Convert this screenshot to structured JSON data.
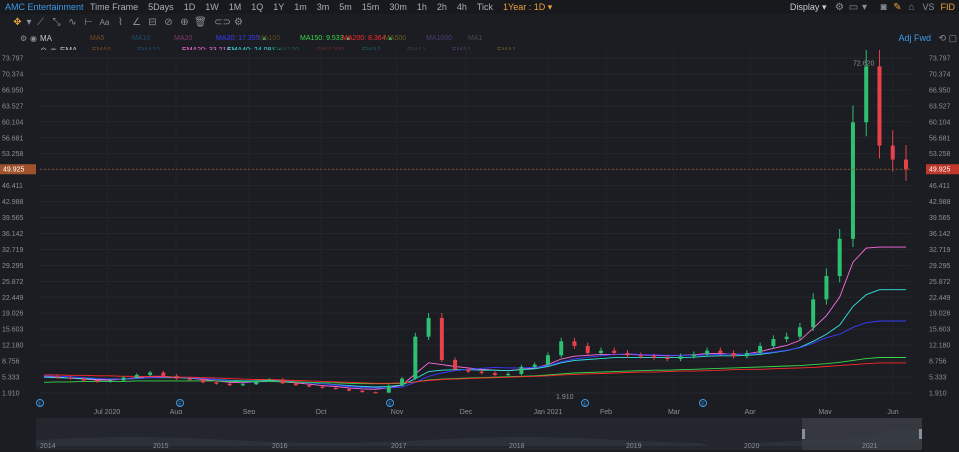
{
  "toolbar": {
    "title": "AMC Entertainment ...",
    "time_frame_label": "Time Frame",
    "time_frames": [
      "5Days",
      "1D",
      "1W",
      "1M",
      "1Q",
      "1Y",
      "1m",
      "3m",
      "5m",
      "15m",
      "30m",
      "1h",
      "2h",
      "4h",
      "Tick"
    ],
    "active_range": "1Year : 1D",
    "display_label": "Display",
    "vs_label": "VS",
    "fid_label": "FID",
    "icons": [
      "settings-icon",
      "layout-icon",
      "camera-icon",
      "pencil-icon",
      "lock-icon"
    ]
  },
  "tools": {
    "icons": [
      "crosshair-icon",
      "trend-line-icon",
      "ray-line-icon",
      "wave-icon",
      "measure-icon",
      "text-icon",
      "brush-icon",
      "angle-icon",
      "fib-icon",
      "cycle-icon",
      "gann-icon",
      "trash-icon",
      "link-icon",
      "settings-icon"
    ],
    "text_tool_label": "Aa"
  },
  "indicators": {
    "ma": {
      "label": "MA",
      "items": [
        {
          "text": "MA5",
          "color": "#7a4a23"
        },
        {
          "text": "MA10",
          "color": "#1f4d6b"
        },
        {
          "text": "MA20",
          "color": "#7d3b6b"
        },
        {
          "text": "MA30: 17.355",
          "color": "#3a3cff"
        },
        {
          "text": "MA100",
          "color": "#5a4a1a"
        },
        {
          "text": "MA150: 9.533",
          "color": "#39d84b"
        },
        {
          "text": "MA200: 8.364",
          "color": "#ff2a2a"
        },
        {
          "text": "MA500",
          "color": "#6a5a20"
        },
        {
          "text": "MA1000",
          "color": "#4b3b7a"
        },
        {
          "text": "MA1",
          "color": "#4a4a4a"
        }
      ]
    },
    "ema": {
      "label": "EMA",
      "items": [
        {
          "text": "EMA5",
          "color": "#7a4a23"
        },
        {
          "text": "EMA10",
          "color": "#1f4d6b"
        },
        {
          "text": "EMA20: 33.214",
          "color": "#ff6ee0"
        },
        {
          "text": "EMA40: 24.081",
          "color": "#35e3e3"
        },
        {
          "text": "EMA120",
          "color": "#1f5a4a"
        },
        {
          "text": "EMA250",
          "color": "#6a2a2a"
        },
        {
          "text": "EMA1",
          "color": "#1f5a6a"
        },
        {
          "text": "EMA1",
          "color": "#3a3a4a"
        },
        {
          "text": "EMA1",
          "color": "#4b3b6a"
        },
        {
          "text": "EMA1",
          "color": "#6a5a20"
        }
      ]
    },
    "adj_label": "Adj Fwd"
  },
  "chart_data": {
    "type": "candlestick",
    "y_ticks": [
      "73.797",
      "70.374",
      "66.950",
      "63.527",
      "60.104",
      "56.681",
      "53.258",
      "49.835",
      "46.411",
      "42.988",
      "39.565",
      "36.142",
      "32.719",
      "29.295",
      "25.872",
      "22.449",
      "19.026",
      "15.603",
      "12.180",
      "8.756",
      "5.333",
      "1.910"
    ],
    "ylim": [
      1.91,
      73.797
    ],
    "x_labels": [
      "Jul 2020",
      "Aug",
      "Sep",
      "Oct",
      "Nov",
      "Dec",
      "Jan 2021",
      "Feb",
      "Mar",
      "Apr",
      "May",
      "Jun"
    ],
    "current_price": "49.925",
    "high_label": "72.620",
    "low_label": "1.910",
    "colors": {
      "up": "#2fbf71",
      "down": "#e8414a",
      "price_line": "#a0522d"
    },
    "prices": [
      5.5,
      5.2,
      5.0,
      4.6,
      4.3,
      4.6,
      5.2,
      5.8,
      6.3,
      5.6,
      5.0,
      4.8,
      4.2,
      3.9,
      3.6,
      3.8,
      4.5,
      4.8,
      4.0,
      3.6,
      3.3,
      3.0,
      2.8,
      2.4,
      2.1,
      2.0,
      3.5,
      5.0,
      14.0,
      18.0,
      9.0,
      7.0,
      6.5,
      6.2,
      5.8,
      6.0,
      7.5,
      8.0,
      10.0,
      13.0,
      12.0,
      10.5,
      11.0,
      10.5,
      10.0,
      9.8,
      9.5,
      9.2,
      9.8,
      10.2,
      11.0,
      10.5,
      9.8,
      10.5,
      12.0,
      13.5,
      14.0,
      16.0,
      22.0,
      27.0,
      35.0,
      60.0,
      72.0,
      55.0,
      52.0,
      49.925
    ],
    "ma_lines": [
      {
        "name": "EMA20",
        "color": "#ff6ee0",
        "values": [
          5.4,
          5.3,
          5.1,
          4.9,
          4.7,
          4.7,
          4.9,
          5.2,
          5.5,
          5.5,
          5.3,
          5.1,
          4.8,
          4.5,
          4.2,
          4.1,
          4.3,
          4.5,
          4.3,
          4.1,
          3.8,
          3.5,
          3.3,
          3.0,
          2.8,
          2.7,
          3.0,
          3.6,
          6.0,
          8.4,
          8.0,
          7.6,
          7.3,
          7.0,
          6.8,
          6.7,
          7.0,
          7.3,
          8.0,
          9.2,
          9.8,
          10.0,
          10.2,
          10.2,
          10.2,
          10.1,
          10.0,
          9.9,
          10.0,
          10.1,
          10.4,
          10.4,
          10.2,
          10.3,
          10.8,
          11.5,
          12.1,
          13.2,
          15.8,
          18.5,
          22.5,
          30.0,
          33.0,
          33.214,
          33.214,
          33.214
        ]
      },
      {
        "name": "EMA40",
        "color": "#35e3e3",
        "values": [
          5.3,
          5.2,
          5.1,
          5.0,
          4.9,
          4.9,
          4.9,
          5.0,
          5.2,
          5.2,
          5.2,
          5.1,
          5.0,
          4.8,
          4.6,
          4.5,
          4.5,
          4.6,
          4.5,
          4.3,
          4.1,
          3.9,
          3.7,
          3.5,
          3.3,
          3.2,
          3.3,
          3.6,
          5.0,
          6.5,
          6.8,
          6.9,
          6.9,
          6.8,
          6.8,
          6.7,
          6.9,
          7.1,
          7.6,
          8.4,
          8.9,
          9.1,
          9.3,
          9.5,
          9.5,
          9.5,
          9.5,
          9.5,
          9.5,
          9.6,
          9.8,
          9.9,
          9.9,
          10.0,
          10.2,
          10.6,
          11.0,
          11.7,
          13.0,
          14.5,
          16.5,
          20.5,
          23.0,
          24.081,
          24.081,
          24.081
        ]
      },
      {
        "name": "MA30",
        "color": "#3a3cff",
        "values": [
          5.6,
          5.5,
          5.4,
          5.2,
          5.0,
          4.9,
          4.9,
          5.0,
          5.2,
          5.3,
          5.3,
          5.2,
          5.0,
          4.8,
          4.5,
          4.3,
          4.3,
          4.4,
          4.4,
          4.3,
          4.1,
          3.9,
          3.6,
          3.3,
          3.1,
          3.0,
          3.0,
          3.2,
          4.2,
          5.5,
          6.2,
          6.7,
          7.0,
          7.2,
          7.4,
          7.3,
          7.3,
          7.4,
          7.8,
          8.6,
          9.2,
          9.6,
          9.9,
          10.2,
          10.3,
          10.2,
          10.1,
          10.0,
          10.0,
          10.0,
          10.1,
          10.2,
          10.3,
          10.3,
          10.4,
          10.7,
          11.1,
          11.6,
          12.6,
          13.8,
          14.5,
          16.0,
          17.0,
          17.355,
          17.355,
          17.355
        ]
      },
      {
        "name": "MA150",
        "color": "#39d84b",
        "values": [
          4.2,
          4.3,
          4.3,
          4.4,
          4.4,
          4.4,
          4.4,
          4.5,
          4.5,
          4.5,
          4.5,
          4.5,
          4.5,
          4.5,
          4.4,
          4.4,
          4.4,
          4.4,
          4.3,
          4.3,
          4.2,
          4.1,
          4.1,
          4.0,
          3.9,
          3.9,
          3.9,
          4.0,
          4.3,
          4.7,
          4.9,
          5.0,
          5.1,
          5.2,
          5.3,
          5.4,
          5.5,
          5.6,
          5.8,
          6.0,
          6.2,
          6.3,
          6.4,
          6.5,
          6.6,
          6.7,
          6.8,
          6.8,
          6.9,
          7.0,
          7.1,
          7.2,
          7.3,
          7.4,
          7.5,
          7.6,
          7.7,
          7.8,
          8.0,
          8.2,
          8.5,
          8.9,
          9.3,
          9.533,
          9.533,
          9.533
        ]
      },
      {
        "name": "MA200",
        "color": "#ff2a2a",
        "values": [
          5.8,
          5.8,
          5.7,
          5.7,
          5.6,
          5.6,
          5.5,
          5.5,
          5.4,
          5.4,
          5.3,
          5.3,
          5.2,
          5.1,
          5.0,
          4.9,
          4.8,
          4.8,
          4.7,
          4.6,
          4.5,
          4.4,
          4.3,
          4.2,
          4.1,
          4.0,
          4.0,
          4.1,
          4.3,
          4.6,
          4.8,
          4.9,
          5.0,
          5.1,
          5.2,
          5.3,
          5.4,
          5.5,
          5.6,
          5.8,
          5.9,
          6.0,
          6.1,
          6.2,
          6.3,
          6.4,
          6.4,
          6.5,
          6.6,
          6.6,
          6.7,
          6.8,
          6.9,
          7.0,
          7.0,
          7.1,
          7.2,
          7.3,
          7.4,
          7.6,
          7.8,
          8.0,
          8.2,
          8.364,
          8.364,
          8.364
        ]
      }
    ]
  },
  "event_markers": [
    "E",
    "E",
    "E",
    "E",
    "E"
  ],
  "navigator": {
    "years": [
      "2014",
      "2015",
      "2016",
      "2017",
      "2018",
      "2019",
      "2020",
      "2021"
    ]
  }
}
